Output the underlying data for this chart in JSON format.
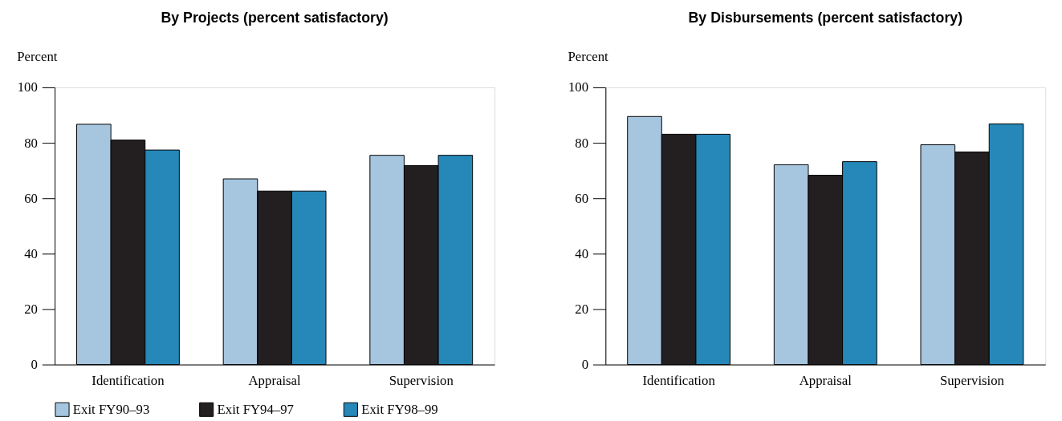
{
  "chart_data": [
    {
      "type": "bar",
      "title": "By Projects (percent satisfactory)",
      "ylabel": "Percent",
      "categories": [
        "Identification",
        "Appraisal",
        "Supervision"
      ],
      "series": [
        {
          "name": "Exit FY90–93",
          "color": "#a6c5df",
          "values": [
            86.7,
            67.0,
            75.5
          ]
        },
        {
          "name": "Exit FY94–97",
          "color": "#231f20",
          "values": [
            81.0,
            62.6,
            71.8
          ]
        },
        {
          "name": "Exit FY98–99",
          "color": "#2688b9",
          "values": [
            77.4,
            62.6,
            75.5
          ]
        }
      ],
      "ylim": [
        0,
        100
      ],
      "yticks": [
        0,
        20,
        40,
        60,
        80,
        100
      ],
      "grid": false,
      "legend": "bottom"
    },
    {
      "type": "bar",
      "title": "By Disbursements (percent satisfactory)",
      "ylabel": "Percent",
      "categories": [
        "Identification",
        "Appraisal",
        "Supervision"
      ],
      "series": [
        {
          "name": "Exit FY90–93",
          "color": "#a6c5df",
          "values": [
            89.5,
            72.1,
            79.3
          ]
        },
        {
          "name": "Exit FY94–97",
          "color": "#231f20",
          "values": [
            83.1,
            68.3,
            76.7
          ]
        },
        {
          "name": "Exit FY98–99",
          "color": "#2688b9",
          "values": [
            83.1,
            73.2,
            86.8
          ]
        }
      ],
      "ylim": [
        0,
        100
      ],
      "yticks": [
        0,
        20,
        40,
        60,
        80,
        100
      ],
      "grid": false,
      "legend": "bottom"
    }
  ]
}
